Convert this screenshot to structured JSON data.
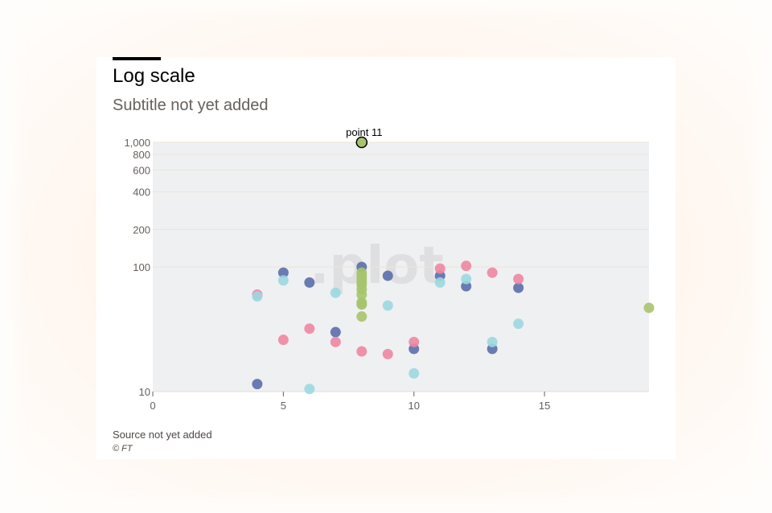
{
  "header": {
    "title": "Log scale",
    "subtitle": "Subtitle not yet added"
  },
  "footer": {
    "source": "Source not yet added",
    "copyright": "© FT"
  },
  "watermark": ".plot",
  "colors": {
    "plot_background": "#eff0f2",
    "gridline": "#ede3d7",
    "series_1": "#5a6fab",
    "series_2": "#ee86a1",
    "series_3": "#9bd8e1",
    "series_4": "#a6c46d"
  },
  "chart_data": {
    "type": "scatter",
    "title": "Log scale",
    "subtitle": "Subtitle not yet added",
    "xlabel": "",
    "ylabel": "",
    "xlim": [
      0,
      19
    ],
    "ylim": [
      10,
      1000
    ],
    "y_scale": "log",
    "x_ticks": [
      "0",
      "5",
      "10",
      "15"
    ],
    "y_ticks": [
      "10",
      "100",
      "200",
      "400",
      "600",
      "800",
      "1,000"
    ],
    "x_tick_values": [
      0,
      5,
      10,
      15
    ],
    "y_tick_values": [
      10,
      100,
      200,
      400,
      600,
      800,
      1000
    ],
    "grid": true,
    "series": [
      {
        "color": "#5a6fab",
        "points": [
          [
            4,
            11.5
          ],
          [
            5,
            90
          ],
          [
            6,
            75
          ],
          [
            7,
            30
          ],
          [
            8,
            100
          ],
          [
            9,
            85
          ],
          [
            10,
            22
          ],
          [
            11,
            85
          ],
          [
            12,
            70
          ],
          [
            13,
            22
          ],
          [
            14,
            68
          ]
        ]
      },
      {
        "color": "#ee86a1",
        "points": [
          [
            4,
            60
          ],
          [
            5,
            26
          ],
          [
            6,
            32
          ],
          [
            7,
            25
          ],
          [
            8,
            21
          ],
          [
            9,
            20
          ],
          [
            10,
            25
          ],
          [
            11,
            97
          ],
          [
            12,
            102
          ],
          [
            13,
            90
          ],
          [
            14,
            80
          ]
        ]
      },
      {
        "color": "#9bd8e1",
        "points": [
          [
            4,
            58
          ],
          [
            5,
            78
          ],
          [
            6,
            10.5
          ],
          [
            7,
            62
          ],
          [
            8,
            50
          ],
          [
            9,
            49
          ],
          [
            10,
            14
          ],
          [
            11,
            75
          ],
          [
            12,
            80
          ],
          [
            13,
            25
          ],
          [
            14,
            35
          ]
        ]
      },
      {
        "color": "#a6c46d",
        "points": [
          [
            8,
            1000
          ],
          [
            8,
            90
          ],
          [
            8,
            85
          ],
          [
            8,
            80
          ],
          [
            8,
            76
          ],
          [
            8,
            72
          ],
          [
            8,
            66
          ],
          [
            8,
            60
          ],
          [
            8,
            52
          ],
          [
            8,
            50
          ],
          [
            8,
            40
          ],
          [
            19,
            47
          ]
        ]
      }
    ],
    "annotations": [
      {
        "text": "point 11",
        "x": 8,
        "y": 1000
      }
    ]
  }
}
